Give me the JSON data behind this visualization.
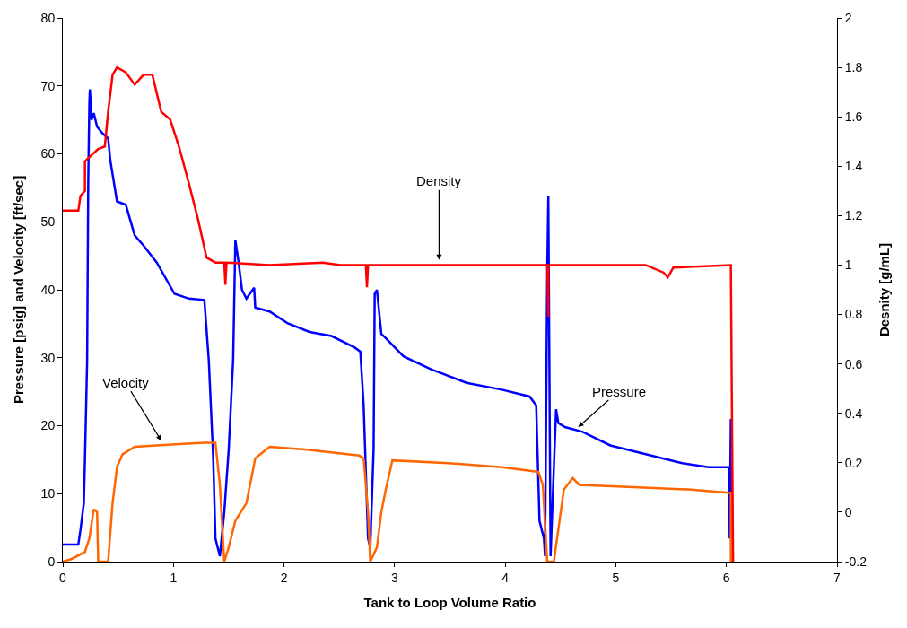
{
  "chart_data": {
    "type": "line",
    "xlabel": "Tank to Loop Volume Ratio",
    "ylabel": "Pressure [psig] and Velocity [ft/sec]",
    "y2label": "Desnity [g/mL]",
    "xlim": [
      0,
      7
    ],
    "xticks": [
      0,
      1,
      2,
      3,
      4,
      5,
      6,
      7
    ],
    "ylim": [
      0,
      80
    ],
    "yticks": [
      0,
      10,
      20,
      30,
      40,
      50,
      60,
      70,
      80
    ],
    "y2lim": [
      -0.2,
      2
    ],
    "y2ticks": [
      -0.2,
      0,
      0.2,
      0.4,
      0.6,
      0.8,
      1,
      1.2,
      1.4,
      1.6,
      1.8,
      2
    ],
    "marker": "none",
    "line_style": "solid",
    "annotations": [
      "Density",
      {
        "text": "Velocity",
        "x": 0.89,
        "y": 17.8
      },
      {
        "text": "Pressure",
        "x": 4.66,
        "y": 19.8
      }
    ],
    "series": [
      {
        "color": "#0000ff",
        "x": [
          0,
          0.14,
          0.16,
          0.19,
          0.2,
          0.22,
          0.23,
          0.24,
          0.245,
          0.26,
          0.28,
          0.31,
          0.36,
          0.41,
          0.43,
          0.49,
          0.57,
          0.65,
          0.73,
          0.85,
          1.01,
          1.14,
          1.28,
          1.32,
          1.36,
          1.38,
          1.42,
          1.46,
          1.5,
          1.54,
          1.56,
          1.59,
          1.62,
          1.66,
          1.73,
          1.74,
          1.87,
          2.03,
          2.23,
          2.43,
          2.64,
          2.69,
          2.72,
          2.76,
          2.78,
          2.81,
          2.82,
          2.84,
          2.88,
          2.92,
          3.08,
          3.33,
          3.65,
          3.97,
          4.22,
          4.28,
          4.31,
          4.35,
          4.36,
          4.38,
          4.39,
          4.41,
          4.44,
          4.46,
          4.48,
          4.54,
          4.7,
          4.95,
          5.27,
          5.6,
          5.84,
          6.02,
          6.03,
          6.04,
          6.05
        ],
        "values": [
          2.5,
          2.5,
          4.7,
          8.6,
          15,
          29.5,
          56,
          67.5,
          69.5,
          65,
          66,
          64,
          63,
          62.3,
          59,
          53,
          52.5,
          48,
          46.5,
          44,
          39.4,
          38.7,
          38.5,
          29.6,
          15.2,
          3.4,
          0.8,
          7.3,
          16.5,
          29.6,
          47.3,
          44,
          40,
          38.7,
          40.3,
          37.4,
          36.8,
          35.1,
          33.8,
          33.2,
          31.5,
          30.9,
          23,
          3.4,
          2.1,
          16.5,
          39.4,
          40,
          33.5,
          32.9,
          30.2,
          28.3,
          26.3,
          25.3,
          24.3,
          23,
          6,
          3.4,
          0.8,
          42.7,
          53.8,
          0.8,
          13.9,
          22.4,
          20.4,
          19.8,
          19.1,
          17.1,
          15.8,
          14.5,
          13.9,
          13.9,
          3.4,
          21,
          3.4
        ]
      },
      {
        "color": "#ff6600",
        "x": [
          0,
          0.08,
          0.2,
          0.24,
          0.28,
          0.31,
          0.32,
          0.41,
          0.45,
          0.49,
          0.54,
          0.65,
          1.05,
          1.28,
          1.38,
          1.42,
          1.46,
          1.5,
          1.56,
          1.66,
          1.74,
          1.87,
          2.19,
          2.68,
          2.72,
          2.76,
          2.78,
          2.84,
          2.88,
          2.92,
          2.98,
          3.49,
          3.97,
          4.3,
          4.34,
          4.38,
          4.44,
          4.48,
          4.53,
          4.61,
          4.67,
          5.11,
          5.68,
          6.04,
          6.04
        ],
        "values": [
          0,
          0.4,
          1.4,
          3.4,
          7.7,
          7.3,
          0,
          0,
          8.6,
          13.9,
          15.8,
          16.9,
          17.3,
          17.5,
          17.5,
          11.3,
          0,
          2.1,
          6,
          8.6,
          15.2,
          16.9,
          16.5,
          15.6,
          15.2,
          7.3,
          0,
          2.1,
          7.3,
          10.6,
          14.9,
          14.5,
          13.9,
          13.2,
          11.3,
          0,
          0,
          4.7,
          10.6,
          12.3,
          11.3,
          11,
          10.6,
          10.1,
          0
        ]
      },
      {
        "color": "#ff0000",
        "axis": "y2",
        "x": [
          0,
          0.14,
          0.16,
          0.2,
          0.2,
          0.32,
          0.38,
          0.41,
          0.45,
          0.49,
          0.57,
          0.65,
          0.73,
          0.81,
          0.89,
          0.97,
          1.05,
          1.14,
          1.22,
          1.3,
          1.38,
          1.46,
          1.47,
          1.48,
          1.87,
          2.35,
          2.51,
          2.74,
          2.75,
          2.76,
          3.49,
          3.97,
          4.38,
          4.39,
          4.39,
          5.27,
          5.43,
          5.47,
          5.52,
          6.04,
          6.06
        ],
        "values": [
          1.22,
          1.22,
          1.28,
          1.3,
          1.42,
          1.47,
          1.48,
          1.62,
          1.77,
          1.8,
          1.78,
          1.73,
          1.77,
          1.77,
          1.62,
          1.59,
          1.48,
          1.33,
          1.19,
          1.03,
          1.01,
          1.01,
          0.92,
          1.01,
          1.0,
          1.01,
          1.0,
          1.0,
          0.91,
          1.0,
          1.0,
          1.0,
          1.0,
          0.79,
          1.0,
          1.0,
          0.97,
          0.95,
          0.99,
          1.0,
          -0.2
        ]
      }
    ]
  }
}
